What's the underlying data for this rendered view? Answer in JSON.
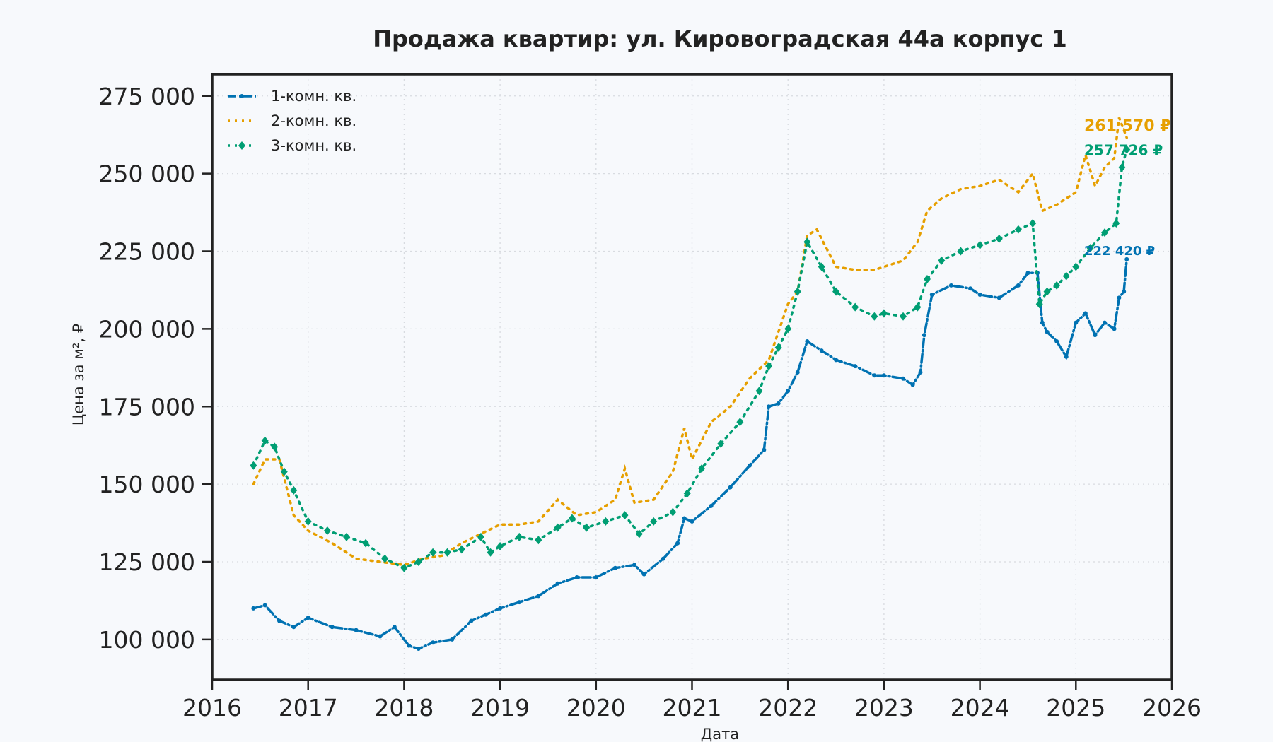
{
  "chart_data": {
    "type": "line",
    "title": "Продажа квартир: ул. Кировоградская 44а корпус 1",
    "xlabel": "Дата",
    "ylabel": "Цена за м², ₽",
    "xlim": [
      2016,
      2026
    ],
    "ylim": [
      87000,
      282000
    ],
    "x_ticks": [
      "2016",
      "2017",
      "2018",
      "2019",
      "2020",
      "2021",
      "2022",
      "2023",
      "2024",
      "2025",
      "2026"
    ],
    "y_ticks": [
      {
        "value": 100000,
        "label": "100 000"
      },
      {
        "value": 125000,
        "label": "125 000"
      },
      {
        "value": 150000,
        "label": "150 000"
      },
      {
        "value": 175000,
        "label": "175 000"
      },
      {
        "value": 200000,
        "label": "200 000"
      },
      {
        "value": 225000,
        "label": "225 000"
      },
      {
        "value": 250000,
        "label": "250 000"
      },
      {
        "value": 275000,
        "label": "275 000"
      }
    ],
    "grid": true,
    "legend_position": "top-left",
    "series": [
      {
        "name": "1-комн. кв.",
        "color": "#0072b2",
        "line_style": "dashdot",
        "marker": "star",
        "end_label": "222 420 ₽",
        "x": [
          2016.43,
          2016.55,
          2016.7,
          2016.85,
          2017.0,
          2017.25,
          2017.5,
          2017.75,
          2017.9,
          2018.05,
          2018.15,
          2018.3,
          2018.5,
          2018.7,
          2018.85,
          2019.0,
          2019.2,
          2019.4,
          2019.6,
          2019.8,
          2020.0,
          2020.2,
          2020.4,
          2020.5,
          2020.7,
          2020.85,
          2020.92,
          2021.0,
          2021.2,
          2021.4,
          2021.6,
          2021.75,
          2021.8,
          2021.9,
          2022.0,
          2022.1,
          2022.2,
          2022.35,
          2022.5,
          2022.7,
          2022.9,
          2023.0,
          2023.2,
          2023.3,
          2023.38,
          2023.42,
          2023.5,
          2023.7,
          2023.9,
          2024.0,
          2024.2,
          2024.4,
          2024.5,
          2024.6,
          2024.65,
          2024.7,
          2024.8,
          2024.9,
          2025.0,
          2025.1,
          2025.2,
          2025.3,
          2025.4,
          2025.45,
          2025.5,
          2025.53
        ],
        "y": [
          110000,
          111000,
          106000,
          104000,
          107000,
          104000,
          103000,
          101000,
          104000,
          98000,
          97000,
          99000,
          100000,
          106000,
          108000,
          110000,
          112000,
          114000,
          118000,
          120000,
          120000,
          123000,
          124000,
          121000,
          126000,
          131000,
          139000,
          138000,
          143000,
          149000,
          156000,
          161000,
          175000,
          176000,
          180000,
          186000,
          196000,
          193000,
          190000,
          188000,
          185000,
          185000,
          184000,
          182000,
          186000,
          198000,
          211000,
          214000,
          213000,
          211000,
          210000,
          214000,
          218000,
          218000,
          202000,
          199000,
          196000,
          191000,
          202000,
          205000,
          198000,
          202000,
          200000,
          210000,
          212000,
          222420
        ]
      },
      {
        "name": "2-комн. кв.",
        "color": "#e69f00",
        "line_style": "dotted",
        "marker": "none",
        "end_label": "261 570 ₽",
        "x": [
          2016.43,
          2016.55,
          2016.7,
          2016.85,
          2017.0,
          2017.25,
          2017.5,
          2017.75,
          2018.0,
          2018.2,
          2018.4,
          2018.6,
          2018.8,
          2019.0,
          2019.2,
          2019.4,
          2019.6,
          2019.8,
          2020.0,
          2020.2,
          2020.3,
          2020.4,
          2020.6,
          2020.8,
          2020.92,
          2021.0,
          2021.2,
          2021.4,
          2021.6,
          2021.8,
          2022.0,
          2022.1,
          2022.2,
          2022.3,
          2022.5,
          2022.7,
          2022.9,
          2023.0,
          2023.2,
          2023.35,
          2023.45,
          2023.6,
          2023.8,
          2024.0,
          2024.2,
          2024.4,
          2024.55,
          2024.65,
          2024.8,
          2024.9,
          2025.0,
          2025.1,
          2025.2,
          2025.3,
          2025.4,
          2025.45,
          2025.53
        ],
        "y": [
          150000,
          158000,
          158000,
          140000,
          135000,
          131000,
          126000,
          125000,
          124000,
          126000,
          127000,
          131000,
          134000,
          137000,
          137000,
          138000,
          145000,
          140000,
          141000,
          145000,
          155000,
          144000,
          145000,
          154000,
          168000,
          158000,
          170000,
          175000,
          184000,
          190000,
          208000,
          212000,
          230000,
          232000,
          220000,
          219000,
          219000,
          220000,
          222000,
          228000,
          238000,
          242000,
          245000,
          246000,
          248000,
          244000,
          250000,
          238000,
          240000,
          242000,
          244000,
          256000,
          246000,
          252000,
          255000,
          268000,
          261570
        ]
      },
      {
        "name": "3-комн. кв.",
        "color": "#009e73",
        "line_style": "dotted",
        "marker": "diamond",
        "end_label": "257 726 ₽",
        "x": [
          2016.43,
          2016.55,
          2016.65,
          2016.75,
          2016.85,
          2017.0,
          2017.2,
          2017.4,
          2017.6,
          2017.8,
          2018.0,
          2018.15,
          2018.3,
          2018.45,
          2018.6,
          2018.8,
          2018.9,
          2019.0,
          2019.2,
          2019.4,
          2019.6,
          2019.75,
          2019.9,
          2020.1,
          2020.3,
          2020.45,
          2020.6,
          2020.8,
          2020.95,
          2021.1,
          2021.3,
          2021.5,
          2021.7,
          2021.8,
          2021.9,
          2022.0,
          2022.1,
          2022.2,
          2022.35,
          2022.5,
          2022.7,
          2022.9,
          2023.0,
          2023.2,
          2023.35,
          2023.45,
          2023.6,
          2023.8,
          2024.0,
          2024.2,
          2024.4,
          2024.55,
          2024.62,
          2024.7,
          2024.8,
          2024.9,
          2025.0,
          2025.15,
          2025.3,
          2025.42,
          2025.48,
          2025.53
        ],
        "y": [
          156000,
          164000,
          162000,
          154000,
          148000,
          138000,
          135000,
          133000,
          131000,
          126000,
          123000,
          125000,
          128000,
          128000,
          129000,
          133000,
          128000,
          130000,
          133000,
          132000,
          136000,
          139000,
          136000,
          138000,
          140000,
          134000,
          138000,
          141000,
          147000,
          155000,
          163000,
          170000,
          180000,
          188000,
          194000,
          200000,
          212000,
          228000,
          220000,
          212000,
          207000,
          204000,
          205000,
          204000,
          207000,
          216000,
          222000,
          225000,
          227000,
          229000,
          232000,
          234000,
          208000,
          212000,
          214000,
          217000,
          220000,
          226000,
          231000,
          234000,
          252000,
          257726
        ]
      }
    ]
  }
}
